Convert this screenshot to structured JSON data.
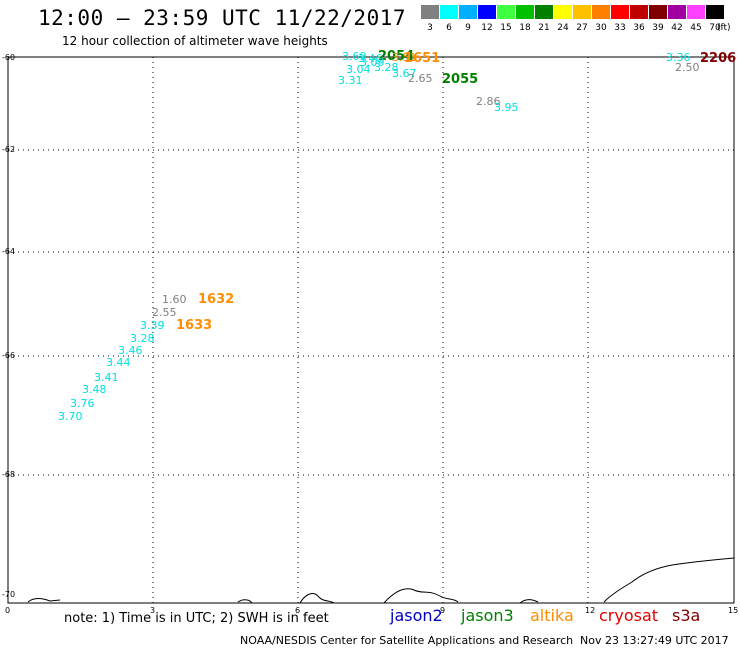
{
  "header": {
    "title": "12:00 – 23:59 UTC 11/22/2017",
    "subtitle": "12 hour collection of altimeter wave heights"
  },
  "legend": {
    "unit": "(ft)",
    "items": [
      {
        "label": "3",
        "color": "#808080"
      },
      {
        "label": "6",
        "color": "#00ffff"
      },
      {
        "label": "9",
        "color": "#00b0ff"
      },
      {
        "label": "12",
        "color": "#0000ff"
      },
      {
        "label": "15",
        "color": "#40ff40"
      },
      {
        "label": "18",
        "color": "#00c000"
      },
      {
        "label": "21",
        "color": "#008000"
      },
      {
        "label": "24",
        "color": "#ffff00"
      },
      {
        "label": "27",
        "color": "#ffc000"
      },
      {
        "label": "30",
        "color": "#ff8000"
      },
      {
        "label": "33",
        "color": "#ff0000"
      },
      {
        "label": "36",
        "color": "#c00000"
      },
      {
        "label": "39",
        "color": "#800000"
      },
      {
        "label": "42",
        "color": "#a000a0"
      },
      {
        "label": "45",
        "color": "#ff40ff"
      },
      {
        "label": "70",
        "color": "#000000"
      }
    ]
  },
  "axes": {
    "lat_labels": [
      "-60",
      "-62",
      "-64",
      "-66",
      "-68",
      "-70"
    ],
    "lon_labels": [
      "0",
      "3",
      "6",
      "9",
      "12",
      "15"
    ]
  },
  "observations": [
    {
      "text": "3.69",
      "color": "#00e0e0"
    },
    {
      "text": "3.46",
      "color": "#00e0e0"
    },
    {
      "text": "2054",
      "color": "#008000"
    },
    {
      "text": "3.09",
      "color": "#00e0e0"
    },
    {
      "text": "3.51",
      "color": "#ff8c00"
    },
    {
      "text": "1651",
      "color": "#ff8c00"
    },
    {
      "text": "3.04",
      "color": "#00e0e0"
    },
    {
      "text": "3.28",
      "color": "#00e0e0"
    },
    {
      "text": "3.67",
      "color": "#00e0e0"
    },
    {
      "text": "3.31",
      "color": "#00e0e0"
    },
    {
      "text": "2.65",
      "color": "#808080"
    },
    {
      "text": "2055",
      "color": "#008000"
    },
    {
      "text": "2.86",
      "color": "#808080"
    },
    {
      "text": "3.95",
      "color": "#00e0e0"
    },
    {
      "text": "3.36",
      "color": "#00e0e0"
    },
    {
      "text": "2206",
      "color": "#800000"
    },
    {
      "text": "2.50",
      "color": "#808080"
    },
    {
      "text": "1.60",
      "color": "#808080"
    },
    {
      "text": "1632",
      "color": "#ff8c00"
    },
    {
      "text": "2.55",
      "color": "#808080"
    },
    {
      "text": "3.39",
      "color": "#00e0e0"
    },
    {
      "text": "1633",
      "color": "#ff8c00"
    },
    {
      "text": "3.28",
      "color": "#00e0e0"
    },
    {
      "text": "3.46",
      "color": "#00e0e0"
    },
    {
      "text": "3.44",
      "color": "#00e0e0"
    },
    {
      "text": "3.41",
      "color": "#00e0e0"
    },
    {
      "text": "3.48",
      "color": "#00e0e0"
    },
    {
      "text": "3.76",
      "color": "#00e0e0"
    },
    {
      "text": "3.70",
      "color": "#00e0e0"
    }
  ],
  "note": "note: 1) Time is in UTC; 2) SWH is in feet",
  "satellites": [
    {
      "name": "jason2",
      "color": "#0000c0"
    },
    {
      "name": "jason3",
      "color": "#008000"
    },
    {
      "name": "altika",
      "color": "#ff8c00"
    },
    {
      "name": "cryosat",
      "color": "#e00000"
    },
    {
      "name": "s3a",
      "color": "#800000"
    }
  ],
  "footer": "NOAA/NESDIS Center for Satellite Applications and Research",
  "timestamp": "Nov 23 13:27:49 UTC 2017"
}
